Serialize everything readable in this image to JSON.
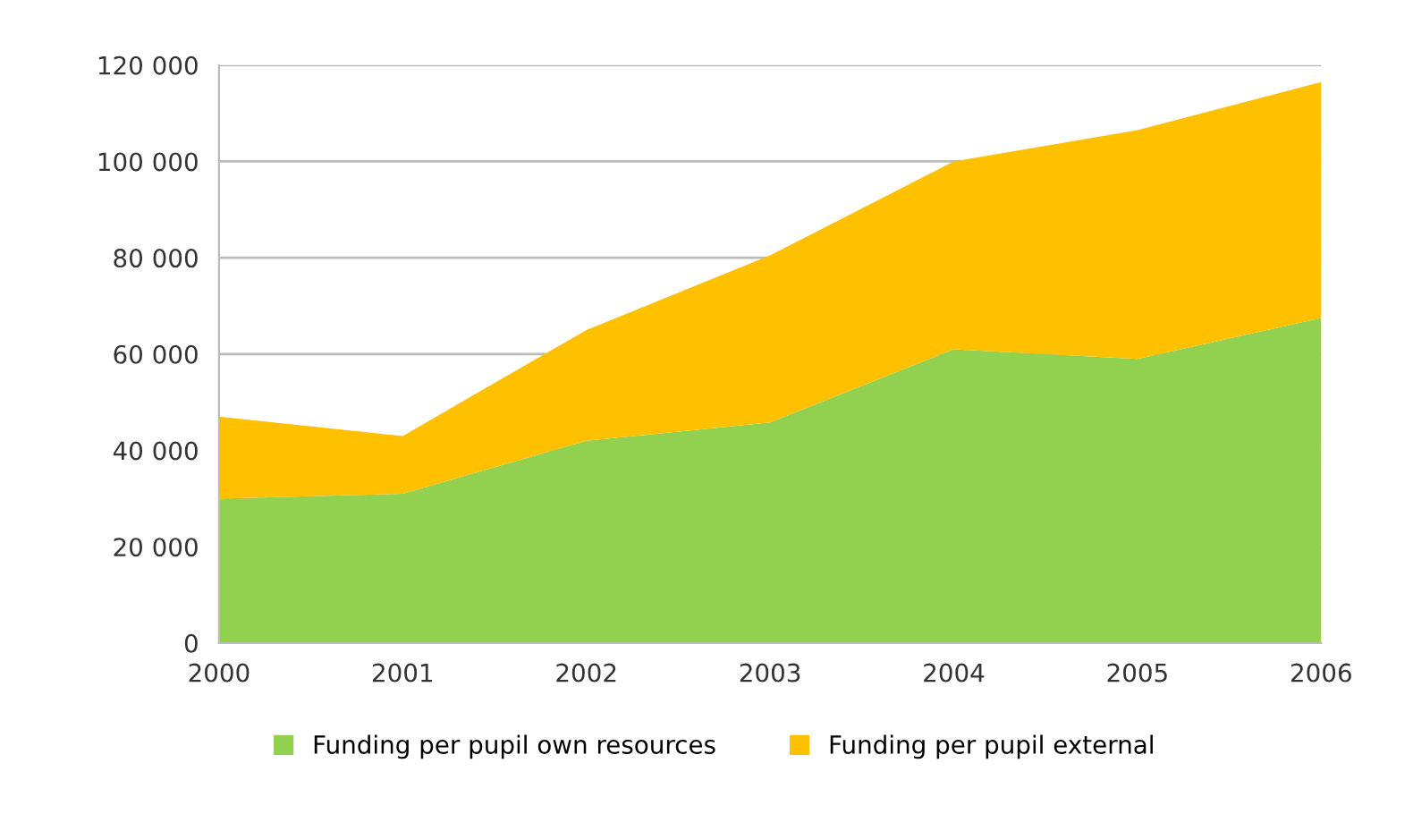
{
  "chart_data": {
    "type": "area",
    "stacked": true,
    "categories": [
      "2000",
      "2001",
      "2002",
      "2003",
      "2004",
      "2005",
      "2006"
    ],
    "series": [
      {
        "name": "Funding per pupil own resources",
        "color": "#92d050",
        "values": [
          30000,
          31000,
          42000,
          45800,
          61000,
          59000,
          67500
        ]
      },
      {
        "name": "Funding per pupil external",
        "color": "#ffc000",
        "values": [
          17000,
          12000,
          23000,
          34700,
          39000,
          47500,
          49000
        ]
      }
    ],
    "ylim": [
      0,
      120000
    ],
    "yticks": [
      {
        "value": 0,
        "label": "0"
      },
      {
        "value": 20000,
        "label": "20 000"
      },
      {
        "value": 40000,
        "label": "40 000"
      },
      {
        "value": 60000,
        "label": "60 000"
      },
      {
        "value": 80000,
        "label": "80 000"
      },
      {
        "value": 100000,
        "label": "100 000"
      },
      {
        "value": 120000,
        "label": "120 000"
      }
    ],
    "grid": "y",
    "legend": "bottom"
  }
}
